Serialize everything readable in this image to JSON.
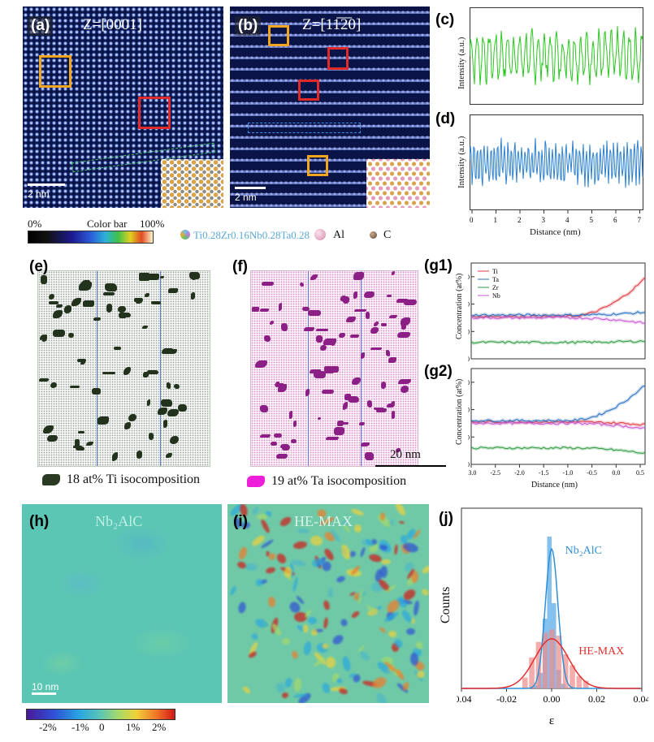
{
  "panels": {
    "a": {
      "label": "(a)",
      "zone": "Z=[0001]",
      "scale": "2 nm"
    },
    "b": {
      "label": "(b)",
      "zone": "Z=[11̅2̅0]",
      "scale": "2 nm"
    },
    "c": {
      "label": "(c)",
      "ylabel": "Intensity (a.u.)"
    },
    "d": {
      "label": "(d)",
      "ylabel": "Intensity (a.u.)",
      "xlabel": "Distance (nm)",
      "xticks": [
        "0",
        "1",
        "2",
        "3",
        "4",
        "5",
        "6",
        "7"
      ]
    },
    "e": {
      "label": "(e)",
      "caption": "18 at% Ti isocomposition"
    },
    "f": {
      "label": "(f)",
      "caption": "19 at% Ta isocomposition",
      "scale": "20 nm"
    },
    "g1": {
      "label": "(g1)",
      "ylabel": "Concentration (at%)",
      "yticks": [
        "0",
        "10",
        "20",
        "30"
      ],
      "legend": [
        "Ti",
        "Ta",
        "Zr",
        "Nb"
      ]
    },
    "g2": {
      "label": "(g2)",
      "ylabel": "Concentration (at%)",
      "yticks": [
        "0",
        "10",
        "20",
        "30"
      ],
      "xlabel": "Distance (nm)",
      "xticks": [
        "-3.0",
        "-2.5",
        "-2.0",
        "-1.5",
        "-1.0",
        "-0.5",
        "0.0",
        "0.5"
      ]
    },
    "h": {
      "label": "(h)",
      "title": "Nb₂AlC",
      "scale": "10 nm"
    },
    "i": {
      "label": "(i)",
      "title": "HE-MAX"
    },
    "j": {
      "label": "(j)",
      "ylabel": "Counts",
      "xlabel": "ε",
      "series_a": "Nb₂AlC",
      "series_b": "HE-MAX",
      "xticks": [
        "-0.04",
        "-0.02",
        "0.00",
        "0.02",
        "0.04"
      ]
    }
  },
  "colorbar_top": {
    "min": "0%",
    "title": "Color bar",
    "max": "100%"
  },
  "legend_atoms": {
    "hea": "Ti0.28Zr0.16Nb0.28Ta0.28",
    "al": "Al",
    "c": "C"
  },
  "colorbar_bottom": {
    "ticks": [
      "-2%",
      "-1%",
      "0",
      "1%",
      "2%"
    ]
  },
  "colors": {
    "ti": "#e0383e",
    "ta": "#2a6fc1",
    "zr": "#2e9a40",
    "nb": "#c65ad3",
    "green_profile": "#28c81e",
    "blue_profile": "#2a7fd0",
    "fit_red": "#e23030",
    "fit_blue": "#2e8fd6"
  }
}
